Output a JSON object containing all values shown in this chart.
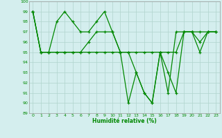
{
  "xlabel": "Humidité relative (%)",
  "bg_color": "#d4eeee",
  "grid_color": "#b0d4cc",
  "line_color": "#008800",
  "ylim": [
    89,
    100
  ],
  "xlim": [
    -0.5,
    23.5
  ],
  "yticks": [
    89,
    90,
    91,
    92,
    93,
    94,
    95,
    96,
    97,
    98,
    99,
    100
  ],
  "xticks": [
    0,
    1,
    2,
    3,
    4,
    5,
    6,
    7,
    8,
    9,
    10,
    11,
    12,
    13,
    14,
    15,
    16,
    17,
    18,
    19,
    20,
    21,
    22,
    23
  ],
  "line1": [
    99,
    95,
    95,
    98,
    99,
    98,
    97,
    97,
    98,
    99,
    97,
    95,
    95,
    93,
    91,
    90,
    95,
    93,
    91,
    97,
    97,
    95,
    97,
    97
  ],
  "line2": [
    99,
    95,
    95,
    95,
    95,
    95,
    95,
    96,
    97,
    97,
    97,
    95,
    90,
    93,
    91,
    90,
    95,
    91,
    97,
    97,
    97,
    96,
    97,
    97
  ],
  "line3": [
    99,
    95,
    95,
    95,
    95,
    95,
    95,
    95,
    95,
    95,
    95,
    95,
    95,
    95,
    95,
    95,
    95,
    95,
    95,
    97,
    97,
    97,
    97,
    97
  ]
}
